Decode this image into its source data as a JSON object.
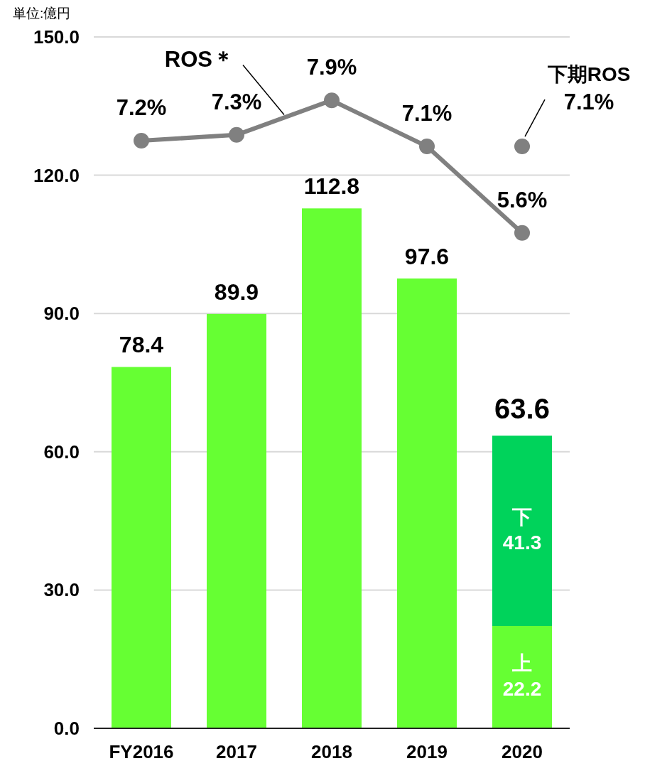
{
  "chart_data": {
    "type": "bar",
    "stacked": true,
    "grid": "y",
    "annotations": [
      "単位:億円"
    ],
    "categories": [
      "FY2016",
      "2017",
      "2018",
      "2019",
      "2020"
    ],
    "ylim": [
      0,
      150
    ],
    "yticks": [
      {
        "value": 0,
        "label": "0.0"
      },
      {
        "value": 30,
        "label": "30.0"
      },
      {
        "value": 60,
        "label": "60.0"
      },
      {
        "value": 90,
        "label": "90.0"
      },
      {
        "value": 120,
        "label": "120.0"
      },
      {
        "value": 150,
        "label": "150.0"
      }
    ],
    "y2lim": [
      -3.0,
      9.0
    ],
    "totals": [
      "78.4",
      "89.9",
      "112.8",
      "97.6",
      "63.6"
    ],
    "series": [
      {
        "color": "#66ff33",
        "values": [
          78.4,
          89.9,
          112.8,
          97.6,
          null
        ]
      },
      {
        "name": "上",
        "color": "#66ff33",
        "values": [
          null,
          null,
          null,
          null,
          22.2
        ],
        "value_labels": [
          null,
          null,
          null,
          null,
          "22.2"
        ]
      },
      {
        "name": "下",
        "color": "#00d35b",
        "values": [
          null,
          null,
          null,
          null,
          41.3
        ],
        "value_labels": [
          null,
          null,
          null,
          null,
          "41.3"
        ]
      },
      {
        "name": "ROS＊",
        "type": "line",
        "axis": "y2",
        "marker": "circle",
        "line_style": "solid",
        "color": "#808080",
        "values": [
          7.2,
          7.3,
          7.9,
          7.1,
          5.6
        ],
        "value_labels": [
          "7.2%",
          "7.3%",
          "7.9%",
          "7.1%",
          "5.6%"
        ]
      },
      {
        "name": "下期ROS",
        "type": "scatter",
        "axis": "y2",
        "marker": "circle",
        "color": "#808080",
        "values": [
          null,
          null,
          null,
          null,
          7.1
        ],
        "value_labels": [
          null,
          null,
          null,
          null,
          "7.1%"
        ]
      }
    ]
  }
}
